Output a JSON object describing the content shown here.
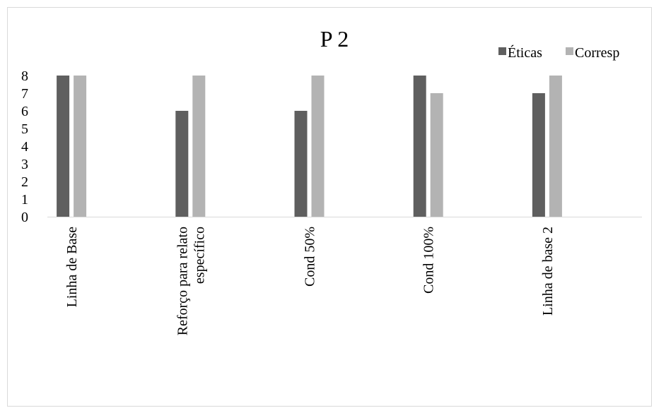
{
  "chart_data": {
    "type": "bar",
    "title": "P 2",
    "categories": [
      "Linha de Base",
      "Reforço para relato específico",
      "Cond 50%",
      "Cond 100%",
      "Linha de base 2"
    ],
    "category_lines": [
      [
        "Linha de Base"
      ],
      [
        "Reforço para relato",
        "específico"
      ],
      [
        "Cond 50%"
      ],
      [
        "Cond 100%"
      ],
      [
        "Linha de base 2"
      ]
    ],
    "series": [
      {
        "name": "Éticas",
        "color": "#5f5f5f",
        "values": [
          8,
          6,
          6,
          8,
          7
        ]
      },
      {
        "name": "Corresp",
        "color": "#b3b3b3",
        "values": [
          8,
          8,
          8,
          7,
          8
        ]
      }
    ],
    "ylim": [
      0,
      8
    ],
    "yticks": [
      "0",
      "1",
      "2",
      "3",
      "4",
      "5",
      "6",
      "7",
      "8"
    ],
    "xlabel": "",
    "ylabel": "",
    "grid": false,
    "legend_position": "top-right"
  }
}
